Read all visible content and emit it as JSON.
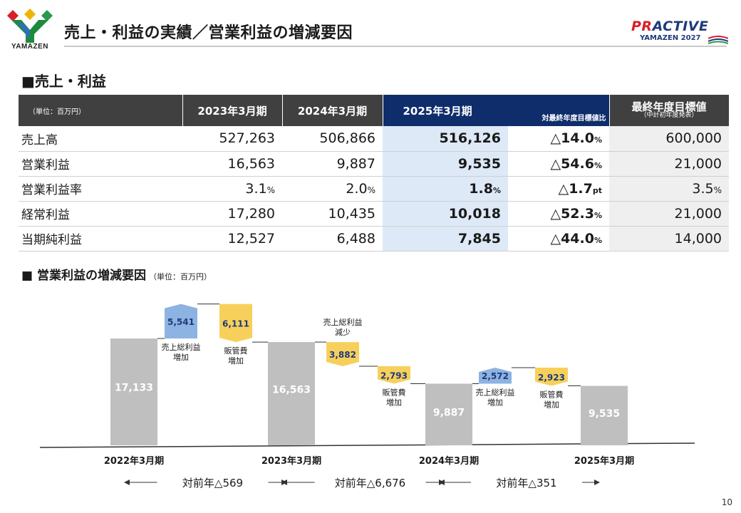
{
  "header": {
    "logo_text": "YAMAZEN",
    "title": "売上・利益の実績／営業利益の増減要因",
    "brand_main_1": "PR",
    "brand_main_2": "ACTIVE",
    "brand_sub": "YAMAZEN 2027"
  },
  "section1": {
    "title": "■売上・利益"
  },
  "table": {
    "unit": "（単位：百万円）",
    "col_2023": "2023年3月期",
    "col_2024": "2024年3月期",
    "col_2025": "2025年3月期",
    "col_vs_target": "対最終年度目標値比",
    "col_target": "最終年度目標値",
    "col_target_note": "（中計初年度発表）",
    "rows": [
      {
        "label": "売上高",
        "v2023": "527,263",
        "v2024": "506,866",
        "v2025": "516,126",
        "chg": "△14.0",
        "chg_unit": "%",
        "target": "600,000"
      },
      {
        "label": "営業利益",
        "v2023": "16,563",
        "v2024": "9,887",
        "v2025": "9,535",
        "chg": "△54.6",
        "chg_unit": "%",
        "target": "21,000"
      },
      {
        "label": "営業利益率",
        "v2023": "3.1",
        "v2023_unit": "%",
        "v2024": "2.0",
        "v2024_unit": "%",
        "v2025": "1.8",
        "v2025_unit": "%",
        "chg": "△1.7",
        "chg_unit": "pt",
        "target": "3.5",
        "target_unit": "%"
      },
      {
        "label": "経常利益",
        "v2023": "17,280",
        "v2024": "10,435",
        "v2025": "10,018",
        "chg": "△52.3",
        "chg_unit": "%",
        "target": "21,000"
      },
      {
        "label": "当期純利益",
        "v2023": "12,527",
        "v2024": "6,488",
        "v2025": "7,845",
        "chg": "△44.0",
        "chg_unit": "%",
        "target": "14,000"
      }
    ]
  },
  "section2": {
    "title": "■ 営業利益の増減要因",
    "unit": "（単位：百万円）"
  },
  "colors": {
    "total_bar": "#bfbfbf",
    "increase": "#8db3e2",
    "decrease": "#f7d05c",
    "value_blue": "#1f3a7a",
    "header_dark": "#404040",
    "header_navy": "#0f2d6b"
  },
  "chart_data": {
    "type": "bar",
    "subtype": "waterfall",
    "unit": "（単位：百万円）",
    "steps": [
      {
        "kind": "total",
        "value": 17133,
        "display": "17,133",
        "label": ""
      },
      {
        "kind": "increase",
        "value": 5541,
        "display": "5,541",
        "label": "売上総利益\n増加"
      },
      {
        "kind": "decrease",
        "value": 6111,
        "display": "6,111",
        "label": "販管費\n増加"
      },
      {
        "kind": "total",
        "value": 16563,
        "display": "16,563",
        "label": ""
      },
      {
        "kind": "decrease",
        "value": 3882,
        "display": "3,882",
        "label": "売上総利益\n減少"
      },
      {
        "kind": "decrease",
        "value": 2793,
        "display": "2,793",
        "label": "販管費\n増加"
      },
      {
        "kind": "total",
        "value": 9887,
        "display": "9,887",
        "label": ""
      },
      {
        "kind": "increase",
        "value": 2572,
        "display": "2,572",
        "label": "売上総利益\n増加"
      },
      {
        "kind": "decrease",
        "value": 2923,
        "display": "2,923",
        "label": "販管費\n増加"
      },
      {
        "kind": "total",
        "value": 9535,
        "display": "9,535",
        "label": ""
      }
    ],
    "periods": [
      "2022年3月期",
      "2023年3月期",
      "2024年3月期",
      "2025年3月期"
    ],
    "yoy": [
      "対前年△569",
      "対前年△6,676",
      "対前年△351"
    ]
  },
  "page_number": "10"
}
